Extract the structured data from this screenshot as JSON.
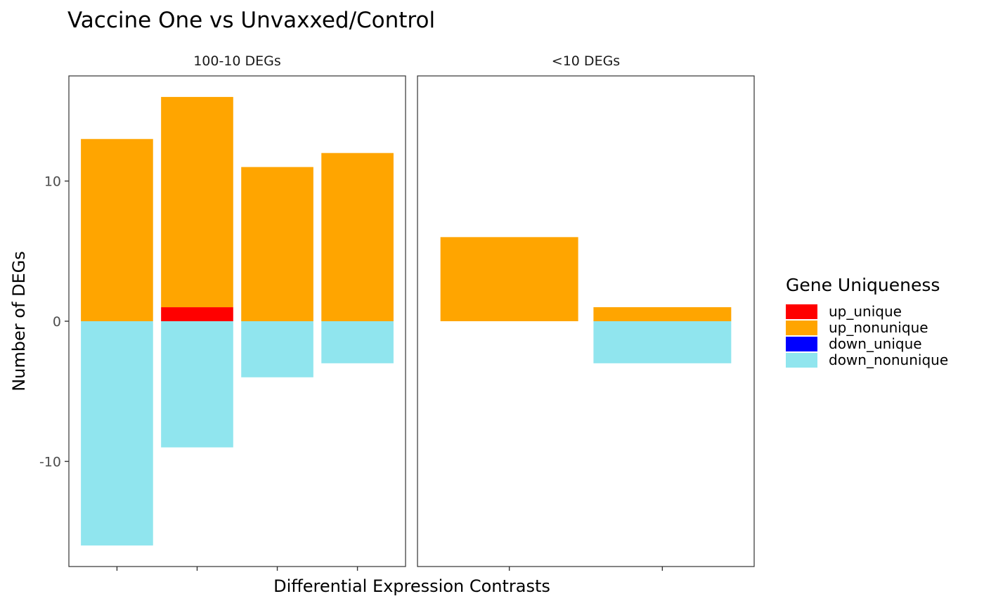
{
  "chart_data": {
    "type": "bar",
    "title": "Vaccine One vs Unvaxxed/Control",
    "xlabel": "Differential Expression Contrasts",
    "ylabel": "Number of DEGs",
    "ylim": [
      -17.5,
      17.5
    ],
    "yticks": [
      -10,
      0,
      10
    ],
    "grid": false,
    "stacked": true,
    "legend": {
      "title": "Gene Uniqueness",
      "position": "right",
      "entries": [
        {
          "name": "up_unique",
          "color": "#ff0000"
        },
        {
          "name": "up_nonunique",
          "color": "#ffa500"
        },
        {
          "name": "down_unique",
          "color": "#0000ff"
        },
        {
          "name": "down_nonunique",
          "color": "#90e5ee"
        }
      ]
    },
    "panels": [
      {
        "strip_label": "100-10 DEGs",
        "categories": [
          "",
          "",
          "",
          ""
        ],
        "series": [
          {
            "name": "up_unique",
            "values": [
              0,
              1,
              0,
              0
            ]
          },
          {
            "name": "up_nonunique",
            "values": [
              13,
              15,
              11,
              12
            ]
          },
          {
            "name": "down_unique",
            "values": [
              0,
              0,
              0,
              0
            ]
          },
          {
            "name": "down_nonunique",
            "values": [
              -16,
              -9,
              -4,
              -3
            ]
          }
        ]
      },
      {
        "strip_label": "<10 DEGs",
        "categories": [
          "",
          ""
        ],
        "series": [
          {
            "name": "up_unique",
            "values": [
              0,
              0
            ]
          },
          {
            "name": "up_nonunique",
            "values": [
              6,
              1
            ]
          },
          {
            "name": "down_unique",
            "values": [
              0,
              0
            ]
          },
          {
            "name": "down_nonunique",
            "values": [
              0,
              -3
            ]
          }
        ]
      }
    ]
  }
}
